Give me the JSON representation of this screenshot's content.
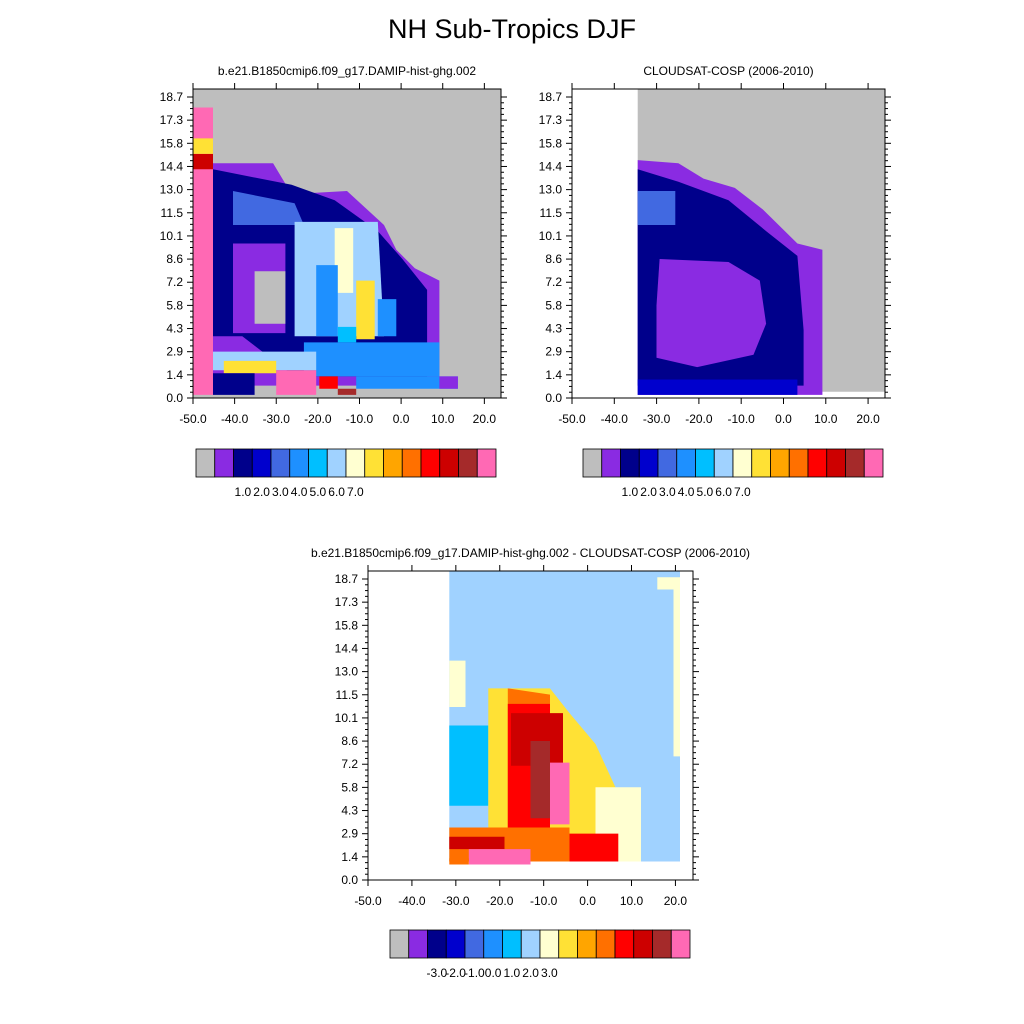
{
  "figure": {
    "title": "NH Sub-Tropics DJF"
  },
  "chart_data": [
    {
      "type": "heatmap",
      "title": "b.e21.B1850cmip6.f09_g17.DAMIP-hist-ghg.002",
      "xticks": [
        "-50.0",
        "-40.0",
        "-30.0",
        "-20.0",
        "-10.0",
        "0.0",
        "10.0",
        "20.0"
      ],
      "yticks": [
        "0.0",
        "1.4",
        "2.9",
        "4.3",
        "5.8",
        "7.2",
        "8.6",
        "10.1",
        "11.5",
        "13.0",
        "14.4",
        "15.8",
        "17.3",
        "18.7"
      ],
      "colorbar": {
        "colors": [
          "#bebebe",
          "#8a2be2",
          "#00008b",
          "#0000cd",
          "#4169e1",
          "#1e90ff",
          "#00bfff",
          "#a0d2ff",
          "#ffffd1",
          "#ffe135",
          "#ffa500",
          "#ff7000",
          "#ff0000",
          "#cd0000",
          "#a52a2a",
          "#ff69b4"
        ],
        "labels": [
          "1.0",
          "2.0",
          "3.0",
          "4.0",
          "5.0",
          "6.0",
          "7.0"
        ]
      }
    },
    {
      "type": "heatmap",
      "title": "CLOUDSAT-COSP (2006-2010)",
      "xticks": [
        "-50.0",
        "-40.0",
        "-30.0",
        "-20.0",
        "-10.0",
        "0.0",
        "10.0",
        "20.0"
      ],
      "yticks": [
        "0.0",
        "1.4",
        "2.9",
        "4.3",
        "5.8",
        "7.2",
        "8.6",
        "10.1",
        "11.5",
        "13.0",
        "14.4",
        "15.8",
        "17.3",
        "18.7"
      ],
      "colorbar": {
        "colors": [
          "#bebebe",
          "#8a2be2",
          "#00008b",
          "#0000cd",
          "#4169e1",
          "#1e90ff",
          "#00bfff",
          "#a0d2ff",
          "#ffffd1",
          "#ffe135",
          "#ffa500",
          "#ff7000",
          "#ff0000",
          "#cd0000",
          "#a52a2a",
          "#ff69b4"
        ],
        "labels": [
          "1.0",
          "2.0",
          "3.0",
          "4.0",
          "5.0",
          "6.0",
          "7.0"
        ]
      }
    },
    {
      "type": "heatmap",
      "title": "b.e21.B1850cmip6.f09_g17.DAMIP-hist-ghg.002 - CLOUDSAT-COSP (2006-2010)",
      "xticks": [
        "-50.0",
        "-40.0",
        "-30.0",
        "-20.0",
        "-10.0",
        "0.0",
        "10.0",
        "20.0"
      ],
      "yticks": [
        "0.0",
        "1.4",
        "2.9",
        "4.3",
        "5.8",
        "7.2",
        "8.6",
        "10.1",
        "11.5",
        "13.0",
        "14.4",
        "15.8",
        "17.3",
        "18.7"
      ],
      "colorbar": {
        "colors": [
          "#bebebe",
          "#8a2be2",
          "#00008b",
          "#0000cd",
          "#4169e1",
          "#1e90ff",
          "#00bfff",
          "#a0d2ff",
          "#ffffd1",
          "#ffe135",
          "#ffa500",
          "#ff7000",
          "#ff0000",
          "#cd0000",
          "#a52a2a",
          "#ff69b4"
        ],
        "labels": [
          "-3.0",
          "-2.0",
          "-1.0",
          "0.0",
          "1.0",
          "2.0",
          "3.0"
        ]
      }
    }
  ]
}
